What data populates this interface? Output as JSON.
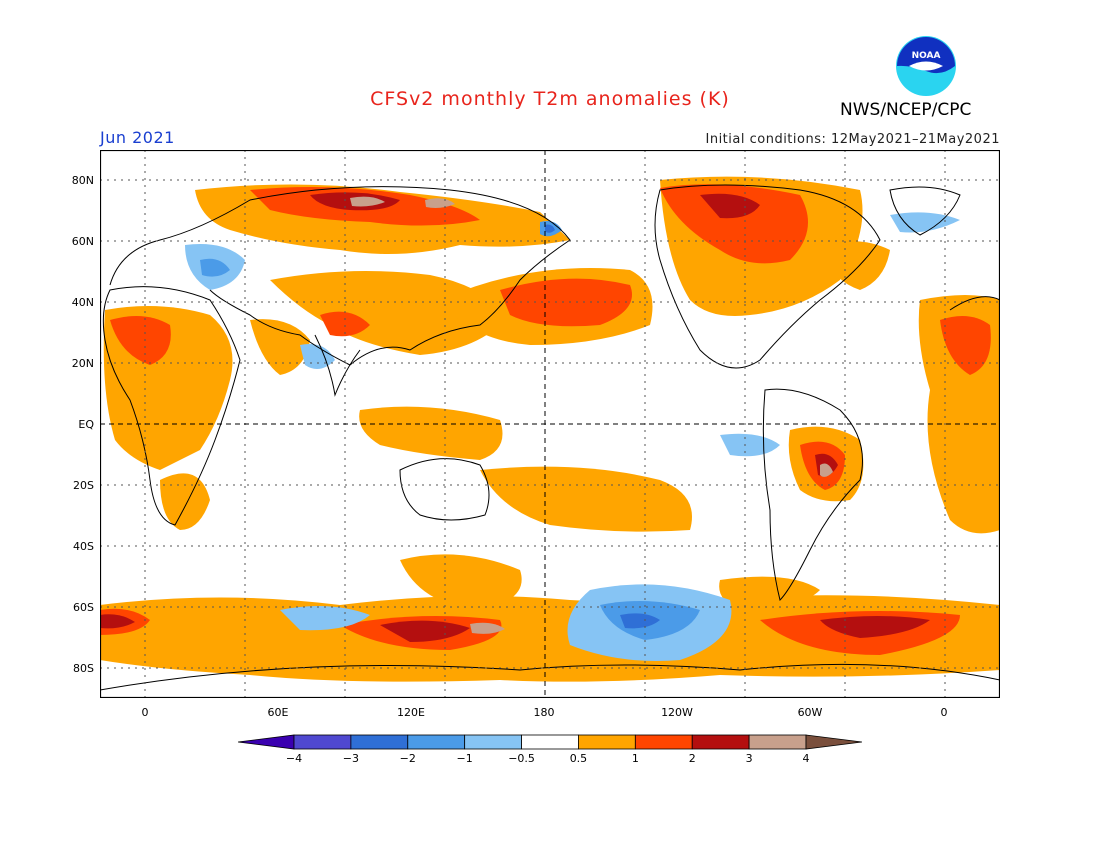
{
  "header": {
    "title": "CFSv2 monthly T2m anomalies (K)",
    "agency": "NWS/NCEP/CPC",
    "month": "Jun 2021",
    "initial_conditions": "Initial conditions: 12May2021–21May2021",
    "logo_text": "NOAA"
  },
  "map": {
    "lat_labels": [
      "80N",
      "60N",
      "40N",
      "20N",
      "EQ",
      "20S",
      "40S",
      "60S",
      "80S"
    ],
    "lon_labels": [
      "0",
      "60E",
      "120E",
      "180",
      "120W",
      "60W",
      "0"
    ]
  },
  "colorbar": {
    "tick_labels": [
      "−4",
      "−3",
      "−2",
      "−1",
      "−0.5",
      "0.5",
      "1",
      "2",
      "3",
      "4"
    ],
    "colors": [
      "#3a00b0",
      "#4f48d0",
      "#2f6fd6",
      "#4b9be8",
      "#86c4f4",
      "#ffffff",
      "#ffa500",
      "#ff4500",
      "#b40f0f",
      "#c8a08c",
      "#7a4f3c"
    ]
  },
  "colors": {
    "title": "#e8241c",
    "month_label": "#1a3fd0",
    "warm_weak": "#ffa500",
    "warm_mid": "#ff4500",
    "warm_strong": "#b40f0f",
    "warm_extreme": "#c8a08c",
    "cool_weak": "#86c4f4",
    "cool_mid": "#4b9be8",
    "cool_strong": "#2f6fd6"
  }
}
